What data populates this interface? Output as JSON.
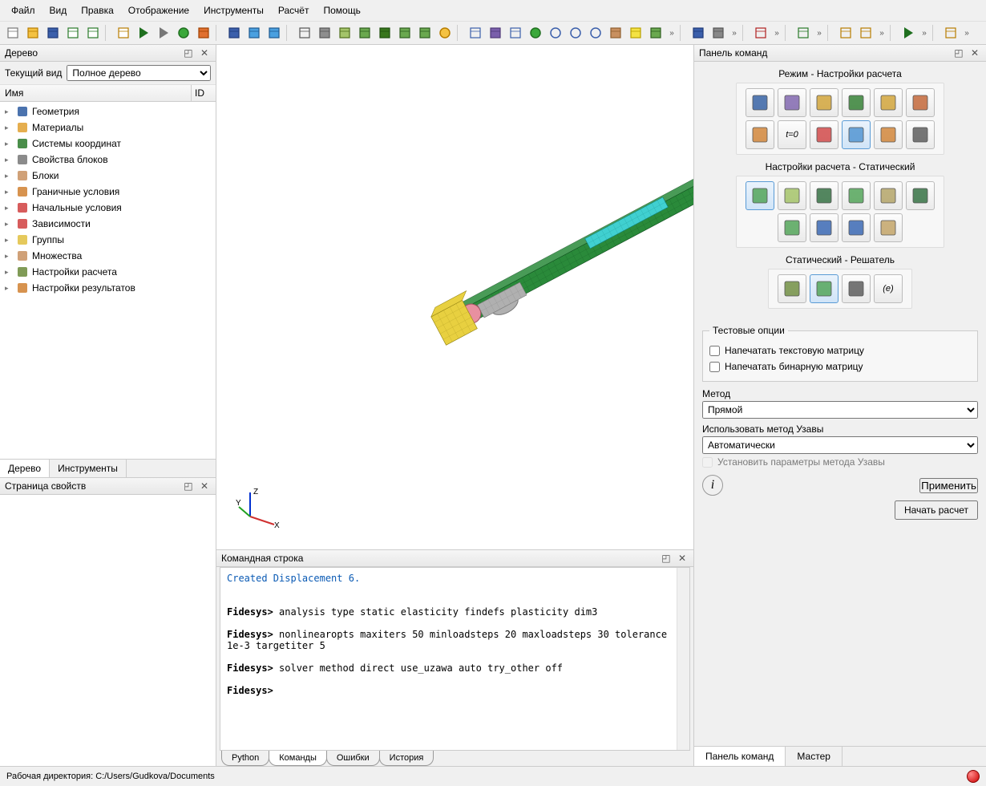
{
  "menu": [
    "Файл",
    "Вид",
    "Правка",
    "Отображение",
    "Инструменты",
    "Расчёт",
    "Помощь"
  ],
  "toolbar_icons": [
    {
      "n": "new-icon",
      "c": "#fff",
      "s": "#777"
    },
    {
      "n": "open-icon",
      "c": "#f4c243",
      "s": "#b87d00"
    },
    {
      "n": "save-icon",
      "c": "#3b5fab",
      "s": "#1f3a78"
    },
    {
      "n": "save-as-icon",
      "c": "#fff",
      "s": "#2a7a2a"
    },
    {
      "n": "export-icon",
      "c": "#fff",
      "s": "#2a7a2a"
    },
    {
      "n": "sep"
    },
    {
      "n": "script-icon",
      "c": "#fff",
      "s": "#b87d00"
    },
    {
      "n": "run-icon",
      "c": "#3aa83a",
      "s": "#1f6f1f"
    },
    {
      "n": "run-id-icon",
      "c": "#fff",
      "s": "#777"
    },
    {
      "n": "record-icon",
      "c": "#3aa83a",
      "s": "#1f6f1f"
    },
    {
      "n": "palette-icon",
      "c": "#e07030",
      "s": "#a04000"
    },
    {
      "n": "sep"
    },
    {
      "n": "rotate-icon",
      "c": "#3b5fab",
      "s": "#1f3a78"
    },
    {
      "n": "undo-icon",
      "c": "#4aa0e0",
      "s": "#1f5a90"
    },
    {
      "n": "redo-icon",
      "c": "#4aa0e0",
      "s": "#1f5a90"
    },
    {
      "n": "sep"
    },
    {
      "n": "cube-wire-icon",
      "c": "none",
      "s": "#555"
    },
    {
      "n": "cube-shade-icon",
      "c": "#8e8e8e",
      "s": "#555"
    },
    {
      "n": "cube-green1-icon",
      "c": "#a4c46a",
      "s": "#4f6f1f"
    },
    {
      "n": "cube-green2-icon",
      "c": "#6aa84f",
      "s": "#2f5f1f"
    },
    {
      "n": "cube-green3-icon",
      "c": "#38761d",
      "s": "#1f4f0f"
    },
    {
      "n": "spheres-icon",
      "c": "#6aa84f",
      "s": "#2f5f1f"
    },
    {
      "n": "cube-multi-icon",
      "c": "#6aa84f",
      "s": "#2f5f1f"
    },
    {
      "n": "circle-dot-icon",
      "c": "#f4c243",
      "s": "#b87d00"
    },
    {
      "n": "sep"
    },
    {
      "n": "grid-icon",
      "c": "none",
      "s": "#3b5fab"
    },
    {
      "n": "cube-purple-icon",
      "c": "#7a5fab",
      "s": "#4f3a78"
    },
    {
      "n": "select-box-icon",
      "c": "none",
      "s": "#3b5fab"
    },
    {
      "n": "refresh-icon",
      "c": "#3aa83a",
      "s": "#1f6f1f"
    },
    {
      "n": "zoom-in-icon",
      "c": "none",
      "s": "#3b5fab"
    },
    {
      "n": "zoom-out-icon",
      "c": "none",
      "s": "#3b5fab"
    },
    {
      "n": "zoom-fit-icon",
      "c": "none",
      "s": "#3b5fab"
    },
    {
      "n": "box-brown-icon",
      "c": "#c89060",
      "s": "#8f5f30"
    },
    {
      "n": "ruler-icon",
      "c": "#f4e243",
      "s": "#b8a000"
    },
    {
      "n": "cube-green4-icon",
      "c": "#6aa84f",
      "s": "#2f5f1f"
    },
    {
      "n": "overflow"
    },
    {
      "n": "sep"
    },
    {
      "n": "users-icon",
      "c": "#3b5fab",
      "s": "#1f3a78"
    },
    {
      "n": "gear-icon",
      "c": "#888",
      "s": "#555"
    },
    {
      "n": "overflow"
    },
    {
      "n": "sep"
    },
    {
      "n": "plus-icon",
      "c": "none",
      "s": "#b02020"
    },
    {
      "n": "overflow"
    },
    {
      "n": "sep"
    },
    {
      "n": "arrow-down-icon",
      "c": "none",
      "s": "#2a7a2a"
    },
    {
      "n": "overflow"
    },
    {
      "n": "sep"
    },
    {
      "n": "link-icon",
      "c": "none",
      "s": "#b87d00"
    },
    {
      "n": "unlink-icon",
      "c": "none",
      "s": "#b87d00"
    },
    {
      "n": "overflow"
    },
    {
      "n": "sep"
    },
    {
      "n": "play-icon",
      "c": "#3aa83a",
      "s": "#1f6f1f"
    },
    {
      "n": "overflow"
    },
    {
      "n": "sep"
    },
    {
      "n": "axis-z-icon",
      "c": "none",
      "s": "#b87d00"
    },
    {
      "n": "overflow"
    }
  ],
  "tree": {
    "title": "Дерево",
    "current_view_label": "Текущий вид",
    "current_view_value": "Полное дерево",
    "col_name": "Имя",
    "col_id": "ID",
    "items": [
      {
        "label": "Геометрия",
        "ic": "geom",
        "c": "#2c5aa0"
      },
      {
        "label": "Материалы",
        "ic": "mat",
        "c": "#e0a030"
      },
      {
        "label": "Системы координат",
        "ic": "axes",
        "c": "#2a7a2a"
      },
      {
        "label": "Свойства блоков",
        "ic": "ibeam",
        "c": "#777"
      },
      {
        "label": "Блоки",
        "ic": "block",
        "c": "#c89060"
      },
      {
        "label": "Граничные условия",
        "ic": "bc",
        "c": "#d08030"
      },
      {
        "label": "Начальные условия",
        "ic": "ic",
        "c": "#d04040"
      },
      {
        "label": "Зависимости",
        "ic": "dep",
        "c": "#d04040"
      },
      {
        "label": "Группы",
        "ic": "grp",
        "c": "#e0c040"
      },
      {
        "label": "Множества",
        "ic": "set",
        "c": "#c89060"
      },
      {
        "label": "Настройки расчета",
        "ic": "calc",
        "c": "#6a8a3a"
      },
      {
        "label": "Настройки результатов",
        "ic": "res",
        "c": "#d08030"
      }
    ],
    "tabs": [
      "Дерево",
      "Инструменты"
    ],
    "active_tab": 0
  },
  "props": {
    "title": "Страница свойств"
  },
  "cmd": {
    "title": "Командная строка",
    "created_line": "Created Displacement 6.",
    "lines": [
      {
        "p": "Fidesys>",
        "t": " analysis type static elasticity findefs plasticity dim3"
      },
      {
        "p": "Fidesys>",
        "t": " nonlinearopts maxiters 50 minloadsteps 20 maxloadsteps 30 tolerance 1e-3 targetiter 5"
      },
      {
        "p": "Fidesys>",
        "t": " solver method direct use_uzawa auto try_other off"
      },
      {
        "p": "Fidesys>",
        "t": ""
      }
    ],
    "tabs": [
      "Python",
      "Команды",
      "Ошибки",
      "История"
    ],
    "active_tab": 1
  },
  "right": {
    "title": "Панель команд",
    "group1_title": "Режим - Настройки расчета",
    "group1": [
      {
        "n": "shape-sphere-icon",
        "c": "#2c5aa0"
      },
      {
        "n": "mesh-icon",
        "c": "#7a5fab"
      },
      {
        "n": "wrench-icon",
        "c": "#d0a030"
      },
      {
        "n": "axes3-icon",
        "c": "#2a7a2a"
      },
      {
        "n": "mesh2-icon",
        "c": "#d0a030"
      },
      {
        "n": "grid4-icon",
        "c": "#c06030"
      },
      {
        "n": "beam1-icon",
        "c": "#d08030"
      },
      {
        "n": "t0-icon",
        "c": "#555",
        "txt": "t=0"
      },
      {
        "n": "curve-icon",
        "c": "#d04040"
      },
      {
        "n": "table-icon",
        "c": "#4a90d0",
        "sel": true
      },
      {
        "n": "wave-icon",
        "c": "#d08030"
      },
      {
        "n": "search-icon",
        "c": "#555"
      }
    ],
    "group2_title": "Настройки расчета - Статический",
    "group2": [
      {
        "n": "static-icon",
        "c": "#4aa050",
        "sel": true
      },
      {
        "n": "link2-icon",
        "c": "#a0c060"
      },
      {
        "n": "wave2-icon",
        "c": "#2a6a3a"
      },
      {
        "n": "wave3-icon",
        "c": "#4aa050"
      },
      {
        "n": "spiral-icon",
        "c": "#b0a060"
      },
      {
        "n": "wave4-icon",
        "c": "#2a6a3a"
      },
      {
        "n": "cube3-icon",
        "c": "#4aa050"
      },
      {
        "n": "logo-icon",
        "c": "#3060b0"
      },
      {
        "n": "globe-icon",
        "c": "#3060b0"
      },
      {
        "n": "link3-icon",
        "c": "#c0a060"
      }
    ],
    "group3_title": "Статический - Решатель",
    "group3": [
      {
        "n": "gear2-icon",
        "c": "#6a8a3a"
      },
      {
        "n": "matrix-icon",
        "c": "#4aa050",
        "sel": true
      },
      {
        "n": "tune-icon",
        "c": "#555"
      },
      {
        "n": "expr-icon",
        "c": "#555",
        "txt": "(e)"
      }
    ],
    "test_group_title": "Тестовые опции",
    "chk1": "Напечатать текстовую матрицу",
    "chk2": "Напечатать бинарную матрицу",
    "method_label": "Метод",
    "method_value": "Прямой",
    "uzawa_label": "Использовать метод Узавы",
    "uzawa_value": "Автоматически",
    "uzawa_params": "Установить параметры метода Узавы",
    "apply": "Применить",
    "start": "Начать расчет",
    "tabs": [
      "Панель команд",
      "Мастер"
    ],
    "active_tab": 0
  },
  "status": {
    "workdir_label": "Рабочая директория:",
    "workdir_path": "C:/Users/Gudkova/Documents"
  },
  "viewport": {
    "axes": {
      "x": "X",
      "y": "Y",
      "z": "Z"
    },
    "beam": {
      "angle": -28,
      "len": 520,
      "main_fill": "#2a8a3a",
      "main_stroke": "#0f4f1f",
      "cyan_fill": "#40d0d0",
      "cyan_stroke": "#108080",
      "blue_fill": "#2030a0",
      "blue_stroke": "#0f1860",
      "yellow_fill": "#e8d040",
      "yellow_stroke": "#908010",
      "pink_fill": "#e890a0",
      "gray_fill": "#b0b0b0"
    }
  }
}
